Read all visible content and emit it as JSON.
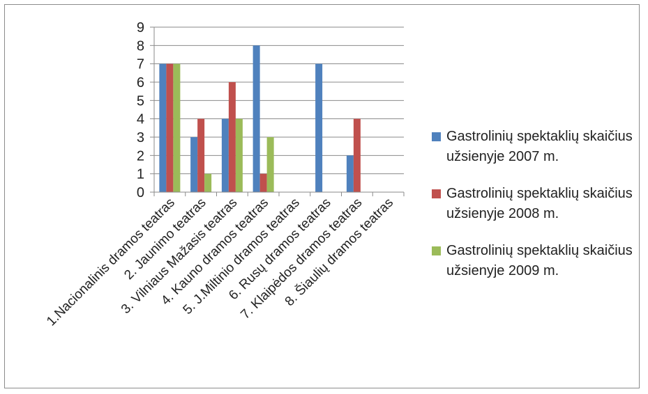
{
  "chart_data": {
    "type": "bar",
    "categories": [
      "1.Nacionalinis dramos teatras",
      "2. Jaunimo teatras",
      "3. Vilniaus Mažasis teatras",
      "4. Kauno dramos teatras",
      "5. J.Miltinio dramos teatras",
      "6. Rusų dramos teatras",
      "7. Klaipėdos dramos teatras",
      "8. Šiaulių dramos teatras"
    ],
    "series": [
      {
        "name": "Gastrolinių spektaklių skaičius užsienyje 2007 m.",
        "color": "#4f81bd",
        "values": [
          7,
          3,
          4,
          8,
          0,
          7,
          2,
          0
        ]
      },
      {
        "name": "Gastrolinių spektaklių skaičius užsienyje 2008 m.",
        "color": "#c0504d",
        "values": [
          7,
          4,
          6,
          1,
          0,
          0,
          4,
          0
        ]
      },
      {
        "name": "Gastrolinių spektaklių skaičius užsienyje 2009 m.",
        "color": "#9bbb59",
        "values": [
          7,
          1,
          4,
          3,
          0,
          0,
          0,
          0
        ]
      }
    ],
    "yticks": [
      "0",
      "1",
      "2",
      "3",
      "4",
      "5",
      "6",
      "7",
      "8",
      "9"
    ],
    "ylim": [
      0,
      9
    ],
    "grid": true,
    "legend_position": "right",
    "xlabel": "",
    "ylabel": ""
  }
}
